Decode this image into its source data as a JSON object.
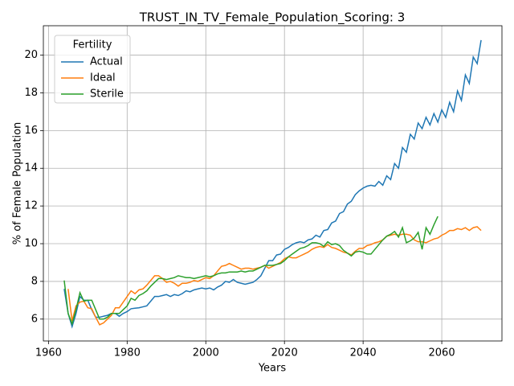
{
  "chart_data": {
    "type": "line",
    "title": "TRUST_IN_TV_Female_Population_Scoring: 3",
    "x_label": "Years",
    "y_label": "% of Female Population",
    "legend_title": "Fertility",
    "legend": "upper left",
    "grid": true,
    "x": [
      1964,
      1965,
      1966,
      1967,
      1968,
      1969,
      1970,
      1971,
      1972,
      1973,
      1974,
      1975,
      1976,
      1977,
      1978,
      1979,
      1980,
      1981,
      1982,
      1983,
      1984,
      1985,
      1986,
      1987,
      1988,
      1989,
      1990,
      1991,
      1992,
      1993,
      1994,
      1995,
      1996,
      1997,
      1998,
      1999,
      2000,
      2001,
      2002,
      2003,
      2004,
      2005,
      2006,
      2007,
      2008,
      2009,
      2010,
      2011,
      2012,
      2013,
      2014,
      2015,
      2016,
      2017,
      2018,
      2019,
      2020,
      2021,
      2022,
      2023,
      2024,
      2025,
      2026,
      2027,
      2028,
      2029,
      2030,
      2031,
      2032,
      2033,
      2034,
      2035,
      2036,
      2037,
      2038,
      2039,
      2040,
      2041,
      2042,
      2043,
      2044,
      2045,
      2046,
      2047,
      2048,
      2049,
      2050,
      2051,
      2052,
      2053,
      2054,
      2055,
      2056,
      2057,
      2058,
      2059,
      2060,
      2061,
      2062,
      2063,
      2064,
      2065,
      2066,
      2067,
      2068,
      2069,
      2070
    ],
    "series": [
      {
        "name": "Actual",
        "color": "#1f77b4",
        "values": [
          7.6,
          6.3,
          5.6,
          6.3,
          7.2,
          7.0,
          7.0,
          6.5,
          6.1,
          6.1,
          6.15,
          6.2,
          6.3,
          6.3,
          6.15,
          6.3,
          6.4,
          6.55,
          6.58,
          6.6,
          6.65,
          6.7,
          6.95,
          7.2,
          7.2,
          7.25,
          7.3,
          7.2,
          7.3,
          7.25,
          7.35,
          7.5,
          7.45,
          7.55,
          7.6,
          7.65,
          7.6,
          7.65,
          7.55,
          7.7,
          7.8,
          8.0,
          7.95,
          8.1,
          7.95,
          7.9,
          7.85,
          7.9,
          7.95,
          8.1,
          8.3,
          8.7,
          9.1,
          9.1,
          9.4,
          9.45,
          9.7,
          9.8,
          9.95,
          10.05,
          10.1,
          10.05,
          10.2,
          10.25,
          10.45,
          10.35,
          10.7,
          10.75,
          11.1,
          11.2,
          11.6,
          11.7,
          12.1,
          12.25,
          12.6,
          12.8,
          12.95,
          13.05,
          13.1,
          13.05,
          13.3,
          13.1,
          13.6,
          13.4,
          14.25,
          14.0,
          15.1,
          14.85,
          15.8,
          15.55,
          16.4,
          16.1,
          16.7,
          16.3,
          16.9,
          16.45,
          17.1,
          16.7,
          17.5,
          17.0,
          18.1,
          17.6,
          18.95,
          18.5,
          19.9,
          19.55,
          20.8
        ]
      },
      {
        "name": "Ideal",
        "color": "#ff7f0e",
        "values": [
          null,
          7.6,
          5.9,
          6.7,
          6.9,
          6.95,
          6.6,
          6.55,
          6.1,
          5.7,
          5.8,
          6.0,
          6.2,
          6.6,
          6.6,
          6.9,
          7.2,
          7.5,
          7.35,
          7.55,
          7.6,
          7.8,
          8.05,
          8.3,
          8.3,
          8.15,
          7.95,
          8.0,
          7.9,
          7.75,
          7.9,
          7.9,
          7.95,
          8.05,
          8.0,
          8.1,
          8.2,
          8.15,
          8.3,
          8.55,
          8.8,
          8.85,
          8.95,
          8.85,
          8.75,
          8.65,
          8.7,
          8.7,
          8.65,
          8.7,
          8.75,
          8.85,
          8.7,
          8.8,
          8.9,
          9.0,
          9.2,
          9.3,
          9.25,
          9.25,
          9.35,
          9.45,
          9.55,
          9.7,
          9.8,
          9.85,
          9.8,
          9.95,
          9.8,
          9.75,
          9.65,
          9.55,
          9.5,
          9.4,
          9.6,
          9.75,
          9.75,
          9.9,
          9.95,
          10.05,
          10.1,
          10.2,
          10.4,
          10.45,
          10.5,
          10.45,
          10.5,
          10.5,
          10.45,
          10.2,
          10.1,
          10.1,
          10.05,
          10.15,
          10.25,
          10.3,
          10.45,
          10.55,
          10.7,
          10.7,
          10.8,
          10.75,
          10.85,
          10.7,
          10.85,
          10.9,
          10.7
        ]
      },
      {
        "name": "Sterile",
        "color": "#2ca02c",
        "values": [
          8.05,
          6.3,
          5.75,
          6.5,
          7.4,
          6.95,
          7.0,
          7.0,
          6.5,
          6.0,
          6.0,
          6.1,
          6.3,
          6.3,
          6.3,
          6.5,
          6.7,
          7.1,
          7.0,
          7.25,
          7.35,
          7.5,
          7.75,
          7.95,
          8.15,
          8.15,
          8.1,
          8.15,
          8.2,
          8.3,
          8.25,
          8.2,
          8.2,
          8.15,
          8.2,
          8.25,
          8.3,
          8.25,
          8.3,
          8.4,
          8.45,
          8.45,
          8.5,
          8.5,
          8.5,
          8.55,
          8.5,
          8.55,
          8.55,
          8.65,
          8.75,
          8.85,
          8.85,
          8.85,
          8.9,
          8.95,
          9.1,
          9.3,
          9.45,
          9.6,
          9.75,
          9.8,
          9.9,
          10.05,
          10.05,
          10.0,
          9.85,
          10.1,
          9.95,
          10.0,
          9.9,
          9.65,
          9.5,
          9.35,
          9.55,
          9.6,
          9.55,
          9.45,
          9.45,
          9.7,
          9.95,
          10.2,
          10.4,
          10.5,
          10.65,
          10.35,
          10.85,
          10.05,
          10.15,
          10.3,
          10.6,
          9.7,
          10.85,
          10.5,
          11.0,
          11.45,
          null,
          null,
          null,
          null,
          null,
          null,
          null,
          null,
          null,
          null,
          null
        ]
      }
    ],
    "xlim": [
      1958.7,
      2075.3
    ],
    "xticks": [
      1960,
      1980,
      2000,
      2020,
      2040,
      2060
    ],
    "ylim": [
      4.84,
      21.56
    ],
    "yticks": [
      6,
      8,
      10,
      12,
      14,
      16,
      18,
      20
    ]
  }
}
